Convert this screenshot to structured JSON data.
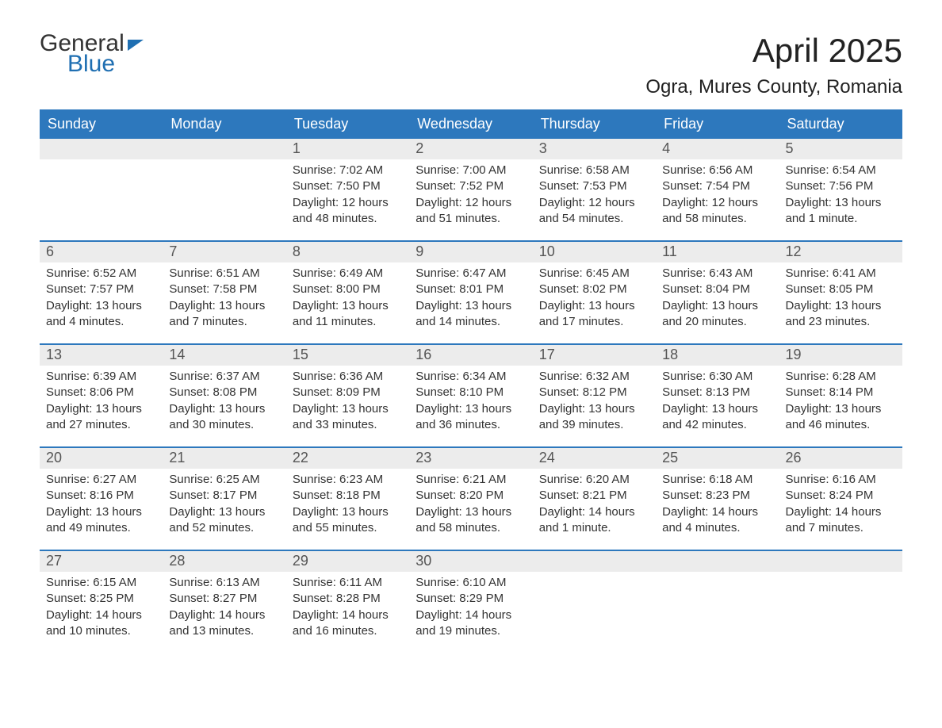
{
  "logo": {
    "general": "General",
    "blue": "Blue"
  },
  "title": "April 2025",
  "location": "Ogra, Mures County, Romania",
  "colors": {
    "header_bg": "#2d78bd",
    "header_text": "#ffffff",
    "daynum_bg": "#ececec",
    "border": "#2d78bd",
    "logo_blue": "#1f6fb2",
    "body_text": "#333333",
    "background": "#ffffff"
  },
  "day_names": [
    "Sunday",
    "Monday",
    "Tuesday",
    "Wednesday",
    "Thursday",
    "Friday",
    "Saturday"
  ],
  "weeks": [
    [
      {
        "empty": true
      },
      {
        "empty": true
      },
      {
        "day": "1",
        "sunrise": "Sunrise: 7:02 AM",
        "sunset": "Sunset: 7:50 PM",
        "daylight1": "Daylight: 12 hours",
        "daylight2": "and 48 minutes."
      },
      {
        "day": "2",
        "sunrise": "Sunrise: 7:00 AM",
        "sunset": "Sunset: 7:52 PM",
        "daylight1": "Daylight: 12 hours",
        "daylight2": "and 51 minutes."
      },
      {
        "day": "3",
        "sunrise": "Sunrise: 6:58 AM",
        "sunset": "Sunset: 7:53 PM",
        "daylight1": "Daylight: 12 hours",
        "daylight2": "and 54 minutes."
      },
      {
        "day": "4",
        "sunrise": "Sunrise: 6:56 AM",
        "sunset": "Sunset: 7:54 PM",
        "daylight1": "Daylight: 12 hours",
        "daylight2": "and 58 minutes."
      },
      {
        "day": "5",
        "sunrise": "Sunrise: 6:54 AM",
        "sunset": "Sunset: 7:56 PM",
        "daylight1": "Daylight: 13 hours",
        "daylight2": "and 1 minute."
      }
    ],
    [
      {
        "day": "6",
        "sunrise": "Sunrise: 6:52 AM",
        "sunset": "Sunset: 7:57 PM",
        "daylight1": "Daylight: 13 hours",
        "daylight2": "and 4 minutes."
      },
      {
        "day": "7",
        "sunrise": "Sunrise: 6:51 AM",
        "sunset": "Sunset: 7:58 PM",
        "daylight1": "Daylight: 13 hours",
        "daylight2": "and 7 minutes."
      },
      {
        "day": "8",
        "sunrise": "Sunrise: 6:49 AM",
        "sunset": "Sunset: 8:00 PM",
        "daylight1": "Daylight: 13 hours",
        "daylight2": "and 11 minutes."
      },
      {
        "day": "9",
        "sunrise": "Sunrise: 6:47 AM",
        "sunset": "Sunset: 8:01 PM",
        "daylight1": "Daylight: 13 hours",
        "daylight2": "and 14 minutes."
      },
      {
        "day": "10",
        "sunrise": "Sunrise: 6:45 AM",
        "sunset": "Sunset: 8:02 PM",
        "daylight1": "Daylight: 13 hours",
        "daylight2": "and 17 minutes."
      },
      {
        "day": "11",
        "sunrise": "Sunrise: 6:43 AM",
        "sunset": "Sunset: 8:04 PM",
        "daylight1": "Daylight: 13 hours",
        "daylight2": "and 20 minutes."
      },
      {
        "day": "12",
        "sunrise": "Sunrise: 6:41 AM",
        "sunset": "Sunset: 8:05 PM",
        "daylight1": "Daylight: 13 hours",
        "daylight2": "and 23 minutes."
      }
    ],
    [
      {
        "day": "13",
        "sunrise": "Sunrise: 6:39 AM",
        "sunset": "Sunset: 8:06 PM",
        "daylight1": "Daylight: 13 hours",
        "daylight2": "and 27 minutes."
      },
      {
        "day": "14",
        "sunrise": "Sunrise: 6:37 AM",
        "sunset": "Sunset: 8:08 PM",
        "daylight1": "Daylight: 13 hours",
        "daylight2": "and 30 minutes."
      },
      {
        "day": "15",
        "sunrise": "Sunrise: 6:36 AM",
        "sunset": "Sunset: 8:09 PM",
        "daylight1": "Daylight: 13 hours",
        "daylight2": "and 33 minutes."
      },
      {
        "day": "16",
        "sunrise": "Sunrise: 6:34 AM",
        "sunset": "Sunset: 8:10 PM",
        "daylight1": "Daylight: 13 hours",
        "daylight2": "and 36 minutes."
      },
      {
        "day": "17",
        "sunrise": "Sunrise: 6:32 AM",
        "sunset": "Sunset: 8:12 PM",
        "daylight1": "Daylight: 13 hours",
        "daylight2": "and 39 minutes."
      },
      {
        "day": "18",
        "sunrise": "Sunrise: 6:30 AM",
        "sunset": "Sunset: 8:13 PM",
        "daylight1": "Daylight: 13 hours",
        "daylight2": "and 42 minutes."
      },
      {
        "day": "19",
        "sunrise": "Sunrise: 6:28 AM",
        "sunset": "Sunset: 8:14 PM",
        "daylight1": "Daylight: 13 hours",
        "daylight2": "and 46 minutes."
      }
    ],
    [
      {
        "day": "20",
        "sunrise": "Sunrise: 6:27 AM",
        "sunset": "Sunset: 8:16 PM",
        "daylight1": "Daylight: 13 hours",
        "daylight2": "and 49 minutes."
      },
      {
        "day": "21",
        "sunrise": "Sunrise: 6:25 AM",
        "sunset": "Sunset: 8:17 PM",
        "daylight1": "Daylight: 13 hours",
        "daylight2": "and 52 minutes."
      },
      {
        "day": "22",
        "sunrise": "Sunrise: 6:23 AM",
        "sunset": "Sunset: 8:18 PM",
        "daylight1": "Daylight: 13 hours",
        "daylight2": "and 55 minutes."
      },
      {
        "day": "23",
        "sunrise": "Sunrise: 6:21 AM",
        "sunset": "Sunset: 8:20 PM",
        "daylight1": "Daylight: 13 hours",
        "daylight2": "and 58 minutes."
      },
      {
        "day": "24",
        "sunrise": "Sunrise: 6:20 AM",
        "sunset": "Sunset: 8:21 PM",
        "daylight1": "Daylight: 14 hours",
        "daylight2": "and 1 minute."
      },
      {
        "day": "25",
        "sunrise": "Sunrise: 6:18 AM",
        "sunset": "Sunset: 8:23 PM",
        "daylight1": "Daylight: 14 hours",
        "daylight2": "and 4 minutes."
      },
      {
        "day": "26",
        "sunrise": "Sunrise: 6:16 AM",
        "sunset": "Sunset: 8:24 PM",
        "daylight1": "Daylight: 14 hours",
        "daylight2": "and 7 minutes."
      }
    ],
    [
      {
        "day": "27",
        "sunrise": "Sunrise: 6:15 AM",
        "sunset": "Sunset: 8:25 PM",
        "daylight1": "Daylight: 14 hours",
        "daylight2": "and 10 minutes."
      },
      {
        "day": "28",
        "sunrise": "Sunrise: 6:13 AM",
        "sunset": "Sunset: 8:27 PM",
        "daylight1": "Daylight: 14 hours",
        "daylight2": "and 13 minutes."
      },
      {
        "day": "29",
        "sunrise": "Sunrise: 6:11 AM",
        "sunset": "Sunset: 8:28 PM",
        "daylight1": "Daylight: 14 hours",
        "daylight2": "and 16 minutes."
      },
      {
        "day": "30",
        "sunrise": "Sunrise: 6:10 AM",
        "sunset": "Sunset: 8:29 PM",
        "daylight1": "Daylight: 14 hours",
        "daylight2": "and 19 minutes."
      },
      {
        "empty": true
      },
      {
        "empty": true
      },
      {
        "empty": true
      }
    ]
  ]
}
